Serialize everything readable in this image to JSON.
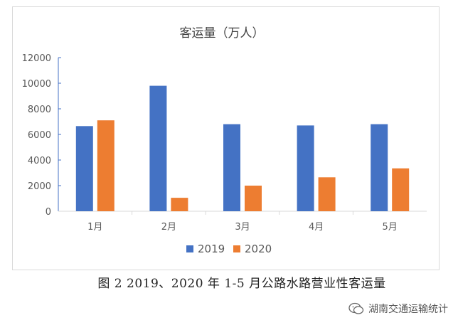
{
  "caption": "图 2 2019、2020 年 1-5 月公路水路营业性客运量",
  "watermark": {
    "text": "湖南交通运输统计",
    "icon": "wechat-icon"
  },
  "colors": {
    "2019": "#4472c4",
    "2020": "#ed7d31",
    "axis": "#4472c4",
    "grid": "#d9d9d9",
    "text": "#595959"
  },
  "chart_data": {
    "type": "bar",
    "title": "客运量（万人）",
    "categories": [
      "1月",
      "2月",
      "3月",
      "4月",
      "5月"
    ],
    "series": [
      {
        "name": "2019",
        "values": [
          6650,
          9800,
          6800,
          6700,
          6800
        ]
      },
      {
        "name": "2020",
        "values": [
          7100,
          1050,
          2000,
          2650,
          3350
        ]
      }
    ],
    "ylim": [
      0,
      12000
    ],
    "yticks": [
      0,
      2000,
      4000,
      6000,
      8000,
      10000,
      12000
    ],
    "grid": false,
    "legend": "bottom"
  }
}
